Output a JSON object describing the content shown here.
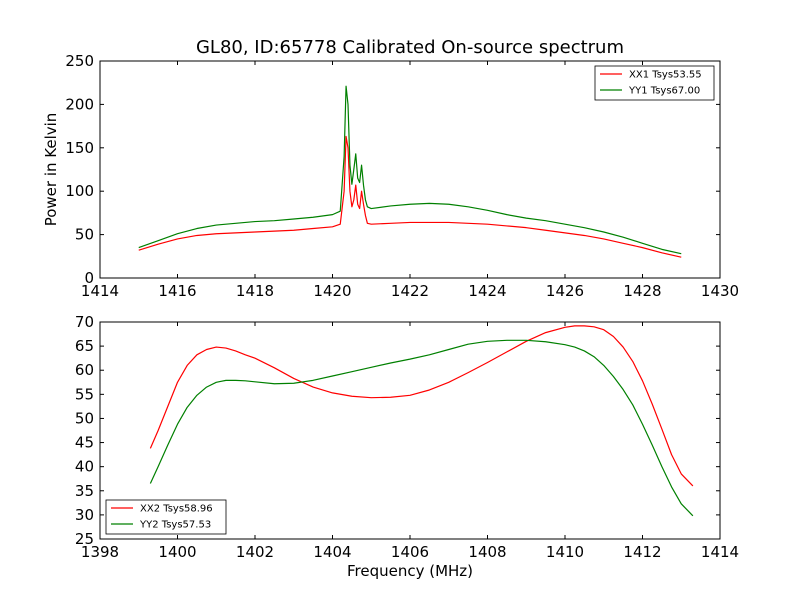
{
  "chart_data": [
    {
      "type": "line",
      "title": "GL80, ID:65778 Calibrated On-source spectrum",
      "xlabel": "",
      "ylabel": "Power in Kelvin",
      "xlim": [
        1414,
        1430
      ],
      "ylim": [
        0,
        250
      ],
      "xticks": [
        1414,
        1416,
        1418,
        1420,
        1422,
        1424,
        1426,
        1428,
        1430
      ],
      "yticks": [
        0,
        50,
        100,
        150,
        200,
        250
      ],
      "grid": false,
      "legend": "top-right",
      "series": [
        {
          "name": "XX1 Tsys53.55",
          "color": "#ff0000",
          "x": [
            1415.0,
            1415.5,
            1416.0,
            1416.5,
            1417.0,
            1417.5,
            1418.0,
            1418.5,
            1419.0,
            1419.5,
            1420.0,
            1420.2,
            1420.3,
            1420.35,
            1420.4,
            1420.45,
            1420.5,
            1420.55,
            1420.6,
            1420.65,
            1420.7,
            1420.75,
            1420.8,
            1420.85,
            1420.9,
            1421.0,
            1421.5,
            1422.0,
            1422.5,
            1423.0,
            1423.5,
            1424.0,
            1424.5,
            1425.0,
            1425.5,
            1426.0,
            1426.5,
            1427.0,
            1427.5,
            1428.0,
            1428.5,
            1429.0
          ],
          "y": [
            32,
            39,
            45,
            49,
            51,
            52,
            53,
            54,
            55,
            57,
            59,
            62,
            100,
            163,
            150,
            100,
            82,
            90,
            107,
            85,
            80,
            100,
            85,
            72,
            63,
            62,
            63,
            64,
            64,
            64,
            63,
            62,
            60,
            58,
            55,
            52,
            49,
            45,
            40,
            35,
            29,
            24
          ]
        },
        {
          "name": "YY1 Tsys67.00",
          "color": "#008000",
          "x": [
            1415.0,
            1415.5,
            1416.0,
            1416.5,
            1417.0,
            1417.5,
            1418.0,
            1418.5,
            1419.0,
            1419.5,
            1420.0,
            1420.2,
            1420.3,
            1420.35,
            1420.4,
            1420.45,
            1420.5,
            1420.55,
            1420.6,
            1420.65,
            1420.7,
            1420.75,
            1420.8,
            1420.85,
            1420.9,
            1421.0,
            1421.5,
            1422.0,
            1422.5,
            1423.0,
            1423.5,
            1424.0,
            1424.5,
            1425.0,
            1425.5,
            1426.0,
            1426.5,
            1427.0,
            1427.5,
            1428.0,
            1428.5,
            1429.0
          ],
          "y": [
            35,
            43,
            51,
            57,
            61,
            63,
            65,
            66,
            68,
            70,
            73,
            77,
            140,
            221,
            200,
            130,
            108,
            125,
            143,
            115,
            110,
            130,
            107,
            90,
            82,
            80,
            83,
            85,
            86,
            85,
            82,
            78,
            73,
            69,
            66,
            62,
            58,
            53,
            47,
            40,
            33,
            28
          ]
        }
      ]
    },
    {
      "type": "line",
      "title": "",
      "xlabel": "Frequency (MHz)",
      "ylabel": "",
      "xlim": [
        1398,
        1414
      ],
      "ylim": [
        25,
        70
      ],
      "xticks": [
        1398,
        1400,
        1402,
        1404,
        1406,
        1408,
        1410,
        1412,
        1414
      ],
      "yticks": [
        25,
        30,
        35,
        40,
        45,
        50,
        55,
        60,
        65,
        70
      ],
      "grid": false,
      "legend": "bottom-left",
      "series": [
        {
          "name": "XX2 Tsys58.96",
          "color": "#ff0000",
          "x": [
            1399.3,
            1399.5,
            1399.75,
            1400.0,
            1400.25,
            1400.5,
            1400.75,
            1401.0,
            1401.25,
            1401.5,
            1401.75,
            1402.0,
            1402.5,
            1403.0,
            1403.5,
            1404.0,
            1404.5,
            1405.0,
            1405.5,
            1406.0,
            1406.5,
            1407.0,
            1407.5,
            1408.0,
            1408.5,
            1409.0,
            1409.5,
            1410.0,
            1410.25,
            1410.5,
            1410.75,
            1411.0,
            1411.25,
            1411.5,
            1411.75,
            1412.0,
            1412.25,
            1412.5,
            1412.75,
            1413.0,
            1413.3
          ],
          "y": [
            43.8,
            47.5,
            52.5,
            57.5,
            61.0,
            63.2,
            64.3,
            64.8,
            64.6,
            64.0,
            63.2,
            62.5,
            60.5,
            58.3,
            56.5,
            55.3,
            54.6,
            54.3,
            54.4,
            54.8,
            55.9,
            57.5,
            59.5,
            61.6,
            63.8,
            66.0,
            67.8,
            68.9,
            69.2,
            69.2,
            69.0,
            68.4,
            67.0,
            64.8,
            61.8,
            57.8,
            53.0,
            47.8,
            42.5,
            38.5,
            36.0
          ]
        },
        {
          "name": "YY2 Tsys57.53",
          "color": "#008000",
          "x": [
            1399.3,
            1399.5,
            1399.75,
            1400.0,
            1400.25,
            1400.5,
            1400.75,
            1401.0,
            1401.25,
            1401.5,
            1401.75,
            1402.0,
            1402.5,
            1403.0,
            1403.5,
            1404.0,
            1404.5,
            1405.0,
            1405.5,
            1406.0,
            1406.5,
            1407.0,
            1407.5,
            1408.0,
            1408.5,
            1409.0,
            1409.5,
            1410.0,
            1410.25,
            1410.5,
            1410.75,
            1411.0,
            1411.25,
            1411.5,
            1411.75,
            1412.0,
            1412.25,
            1412.5,
            1412.75,
            1413.0,
            1413.3
          ],
          "y": [
            36.5,
            40.0,
            44.5,
            48.8,
            52.3,
            54.8,
            56.5,
            57.5,
            57.9,
            57.9,
            57.8,
            57.6,
            57.2,
            57.3,
            57.9,
            58.8,
            59.7,
            60.6,
            61.5,
            62.3,
            63.2,
            64.3,
            65.4,
            66.0,
            66.2,
            66.2,
            65.9,
            65.3,
            64.8,
            64.0,
            62.8,
            61.0,
            58.7,
            56.0,
            52.8,
            48.8,
            44.5,
            40.0,
            35.8,
            32.3,
            29.8
          ]
        }
      ]
    }
  ]
}
